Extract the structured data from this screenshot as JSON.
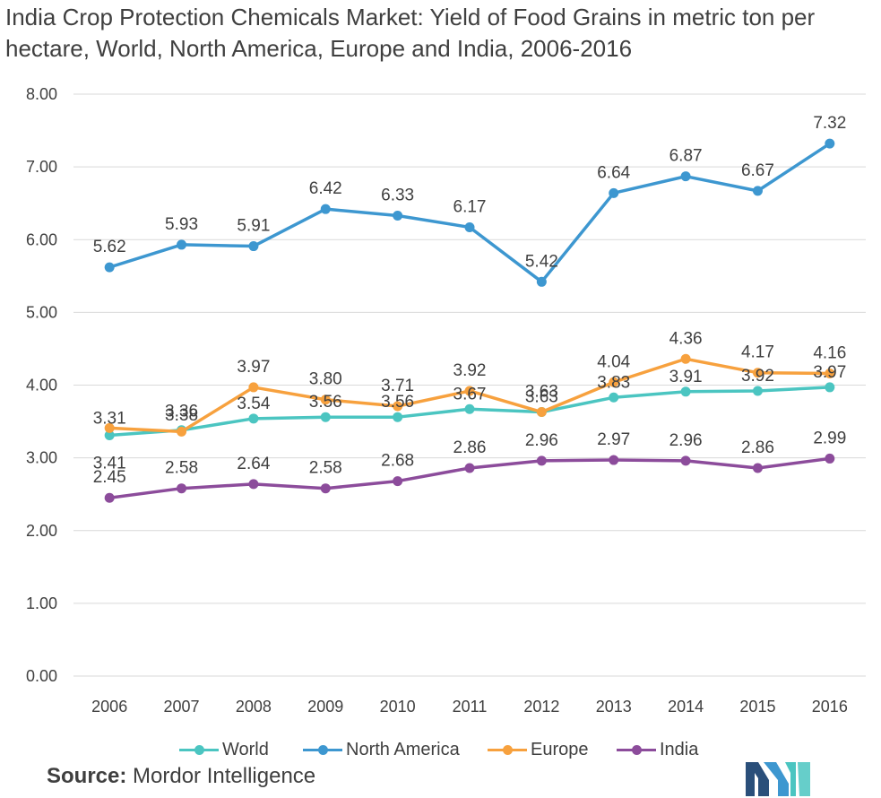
{
  "title": "India Crop Protection Chemicals Market: Yield of Food Grains in metric ton per hectare, World, North America, Europe and India, 2006-2016",
  "source": {
    "label": "Source:",
    "value": "Mordor Intelligence"
  },
  "logo": "mordor-intelligence-logo",
  "chart_data": {
    "type": "line",
    "x": [
      "2006",
      "2007",
      "2008",
      "2009",
      "2010",
      "2011",
      "2012",
      "2013",
      "2014",
      "2015",
      "2016"
    ],
    "ylim": [
      0,
      8
    ],
    "yticks": [
      "0.00",
      "1.00",
      "2.00",
      "3.00",
      "4.00",
      "5.00",
      "6.00",
      "7.00",
      "8.00"
    ],
    "grid": true,
    "legend": "bottom",
    "series": [
      {
        "name": "World",
        "color": "#4bc5c1",
        "values": [
          3.31,
          3.38,
          3.54,
          3.56,
          3.56,
          3.67,
          3.63,
          3.83,
          3.91,
          3.92,
          3.97
        ],
        "labels": [
          "3.31",
          "3.38",
          "3.54",
          "3.56",
          "3.56",
          "3.67",
          "3.63",
          "3.83",
          "3.91",
          "3.92",
          "3.97"
        ]
      },
      {
        "name": "North America",
        "color": "#3d97d0",
        "values": [
          5.62,
          5.93,
          5.91,
          6.42,
          6.33,
          6.17,
          5.42,
          6.64,
          6.87,
          6.67,
          7.32
        ],
        "labels": [
          "5.62",
          "5.93",
          "5.91",
          "6.42",
          "6.33",
          "6.17",
          "5.42",
          "6.64",
          "6.87",
          "6.67",
          "7.32"
        ]
      },
      {
        "name": "Europe",
        "color": "#f7a13e",
        "values": [
          3.41,
          3.36,
          3.97,
          3.8,
          3.71,
          3.92,
          3.63,
          4.04,
          4.36,
          4.17,
          4.16
        ],
        "labels": [
          "3.41",
          "3.36",
          "3.97",
          "3.80",
          "3.71",
          "3.92",
          "3.63",
          "4.04",
          "4.36",
          "4.17",
          "4.16"
        ]
      },
      {
        "name": "India",
        "color": "#8c4c9b",
        "values": [
          2.45,
          2.58,
          2.64,
          2.58,
          2.68,
          2.86,
          2.96,
          2.97,
          2.96,
          2.86,
          2.99
        ],
        "labels": [
          "2.45",
          "2.58",
          "2.64",
          "2.58",
          "2.68",
          "2.86",
          "2.96",
          "2.97",
          "2.96",
          "2.86",
          "2.99"
        ]
      }
    ]
  }
}
